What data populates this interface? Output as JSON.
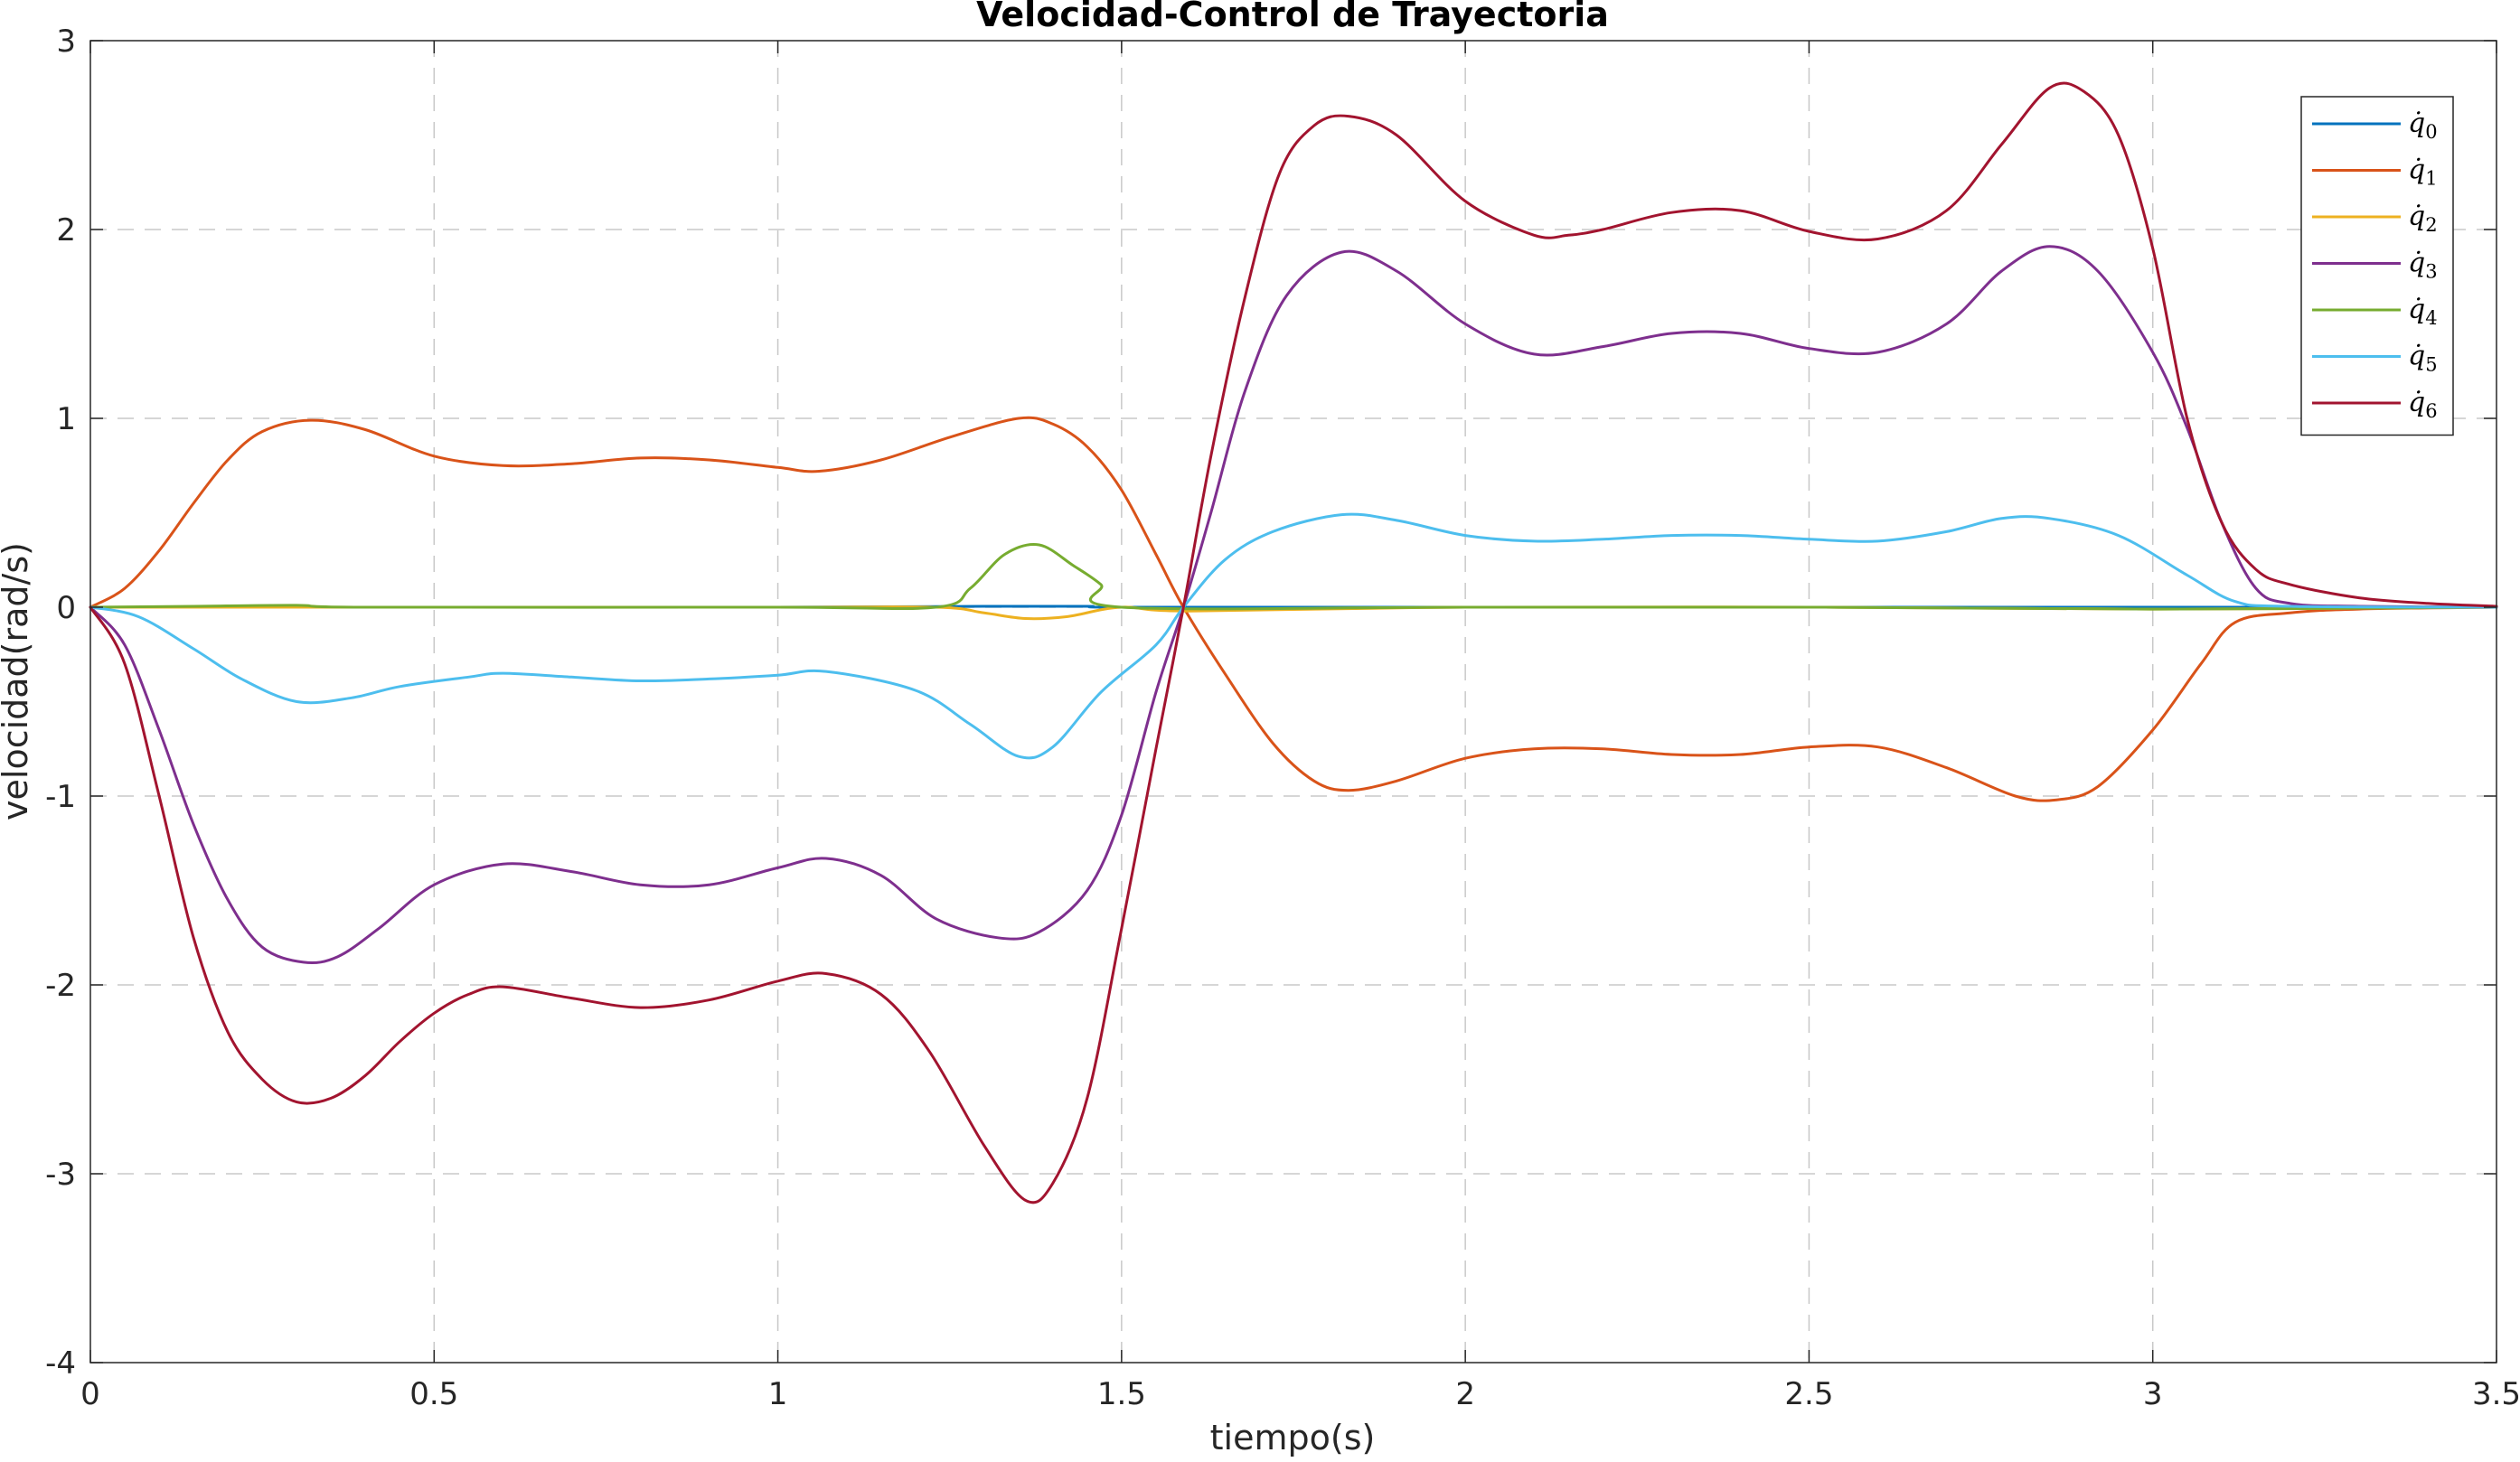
{
  "chart_data": {
    "type": "line",
    "title": "Velocidad-Control de Trayectoria",
    "xlabel": "tiempo(s)",
    "ylabel": "velocidad(rad/s)",
    "xlim": [
      0,
      3.5
    ],
    "ylim": [
      -4,
      3
    ],
    "xticks": [
      0,
      0.5,
      1,
      1.5,
      2,
      2.5,
      3,
      3.5
    ],
    "xtick_labels": [
      "0",
      "0.5",
      "1",
      "1.5",
      "2",
      "2.5",
      "3",
      "3.5"
    ],
    "yticks": [
      -4,
      -3,
      -2,
      -1,
      0,
      1,
      2,
      3
    ],
    "ytick_labels": [
      "-4",
      "-3",
      "-2",
      "-1",
      "0",
      "1",
      "2",
      "3"
    ],
    "grid": true,
    "legend_position": "top-right",
    "series": [
      {
        "name": "q̇0",
        "base": "q̇",
        "sub": "0",
        "color": "#0072BD",
        "points": [
          [
            0,
            0
          ],
          [
            0.5,
            0
          ],
          [
            1.0,
            0
          ],
          [
            1.3,
            0.005
          ],
          [
            1.45,
            0.005
          ],
          [
            1.5,
            0
          ],
          [
            2.0,
            0
          ],
          [
            2.5,
            0
          ],
          [
            3.0,
            0
          ],
          [
            3.5,
            0
          ]
        ]
      },
      {
        "name": "q̇1",
        "base": "q̇",
        "sub": "1",
        "color": "#D95319",
        "points": [
          [
            0,
            0
          ],
          [
            0.05,
            0.1
          ],
          [
            0.1,
            0.3
          ],
          [
            0.15,
            0.55
          ],
          [
            0.2,
            0.78
          ],
          [
            0.25,
            0.93
          ],
          [
            0.32,
            0.99
          ],
          [
            0.4,
            0.94
          ],
          [
            0.5,
            0.8
          ],
          [
            0.6,
            0.75
          ],
          [
            0.7,
            0.76
          ],
          [
            0.8,
            0.79
          ],
          [
            0.9,
            0.78
          ],
          [
            1.0,
            0.74
          ],
          [
            1.06,
            0.72
          ],
          [
            1.15,
            0.78
          ],
          [
            1.25,
            0.9
          ],
          [
            1.35,
            1.0
          ],
          [
            1.4,
            0.97
          ],
          [
            1.45,
            0.85
          ],
          [
            1.5,
            0.62
          ],
          [
            1.55,
            0.28
          ],
          [
            1.59,
            0.0
          ],
          [
            1.65,
            -0.35
          ],
          [
            1.72,
            -0.72
          ],
          [
            1.78,
            -0.92
          ],
          [
            1.83,
            -0.97
          ],
          [
            1.9,
            -0.92
          ],
          [
            2.0,
            -0.8
          ],
          [
            2.1,
            -0.75
          ],
          [
            2.2,
            -0.75
          ],
          [
            2.3,
            -0.78
          ],
          [
            2.4,
            -0.78
          ],
          [
            2.5,
            -0.74
          ],
          [
            2.6,
            -0.74
          ],
          [
            2.7,
            -0.85
          ],
          [
            2.8,
            -1.0
          ],
          [
            2.86,
            -1.02
          ],
          [
            2.92,
            -0.95
          ],
          [
            3.0,
            -0.65
          ],
          [
            3.07,
            -0.3
          ],
          [
            3.12,
            -0.08
          ],
          [
            3.2,
            -0.03
          ],
          [
            3.3,
            -0.01
          ],
          [
            3.5,
            0
          ]
        ]
      },
      {
        "name": "q̇2",
        "base": "q̇",
        "sub": "2",
        "color": "#EDB120",
        "points": [
          [
            0,
            0
          ],
          [
            0.5,
            0
          ],
          [
            1.0,
            0
          ],
          [
            1.23,
            0
          ],
          [
            1.3,
            -0.03
          ],
          [
            1.36,
            -0.06
          ],
          [
            1.42,
            -0.05
          ],
          [
            1.5,
            0
          ],
          [
            1.6,
            -0.02
          ],
          [
            2.0,
            0
          ],
          [
            2.5,
            0
          ],
          [
            3.0,
            -0.01
          ],
          [
            3.5,
            0
          ]
        ]
      },
      {
        "name": "q̇3",
        "base": "q̇",
        "sub": "3",
        "color": "#7E2F8E",
        "points": [
          [
            0,
            0
          ],
          [
            0.05,
            -0.2
          ],
          [
            0.1,
            -0.65
          ],
          [
            0.15,
            -1.15
          ],
          [
            0.2,
            -1.55
          ],
          [
            0.25,
            -1.8
          ],
          [
            0.31,
            -1.88
          ],
          [
            0.36,
            -1.85
          ],
          [
            0.42,
            -1.7
          ],
          [
            0.5,
            -1.47
          ],
          [
            0.6,
            -1.36
          ],
          [
            0.7,
            -1.4
          ],
          [
            0.8,
            -1.47
          ],
          [
            0.9,
            -1.47
          ],
          [
            1.0,
            -1.38
          ],
          [
            1.07,
            -1.33
          ],
          [
            1.15,
            -1.42
          ],
          [
            1.23,
            -1.65
          ],
          [
            1.32,
            -1.75
          ],
          [
            1.38,
            -1.72
          ],
          [
            1.45,
            -1.5
          ],
          [
            1.5,
            -1.1
          ],
          [
            1.55,
            -0.45
          ],
          [
            1.59,
            0.0
          ],
          [
            1.63,
            0.5
          ],
          [
            1.68,
            1.15
          ],
          [
            1.74,
            1.65
          ],
          [
            1.82,
            1.88
          ],
          [
            1.9,
            1.78
          ],
          [
            2.0,
            1.5
          ],
          [
            2.1,
            1.34
          ],
          [
            2.2,
            1.38
          ],
          [
            2.3,
            1.45
          ],
          [
            2.4,
            1.45
          ],
          [
            2.5,
            1.37
          ],
          [
            2.6,
            1.35
          ],
          [
            2.7,
            1.5
          ],
          [
            2.78,
            1.78
          ],
          [
            2.85,
            1.91
          ],
          [
            2.92,
            1.78
          ],
          [
            3.0,
            1.35
          ],
          [
            3.05,
            0.95
          ],
          [
            3.1,
            0.45
          ],
          [
            3.15,
            0.1
          ],
          [
            3.2,
            0.02
          ],
          [
            3.3,
            0.005
          ],
          [
            3.5,
            0
          ]
        ]
      },
      {
        "name": "q̇4",
        "base": "q̇",
        "sub": "4",
        "color": "#77AC30",
        "points": [
          [
            0,
            0
          ],
          [
            0.15,
            0.005
          ],
          [
            0.3,
            0.01
          ],
          [
            0.4,
            0
          ],
          [
            1.0,
            0
          ],
          [
            1.23,
            0
          ],
          [
            1.28,
            0.1
          ],
          [
            1.33,
            0.28
          ],
          [
            1.38,
            0.33
          ],
          [
            1.43,
            0.22
          ],
          [
            1.47,
            0.12
          ],
          [
            1.5,
            0
          ],
          [
            2.0,
            0
          ],
          [
            2.5,
            0
          ],
          [
            3.0,
            -0.01
          ],
          [
            3.5,
            0
          ]
        ]
      },
      {
        "name": "q̇5",
        "base": "q̇",
        "sub": "5",
        "color": "#4DBEEE",
        "points": [
          [
            0,
            0
          ],
          [
            0.07,
            -0.05
          ],
          [
            0.15,
            -0.22
          ],
          [
            0.22,
            -0.38
          ],
          [
            0.3,
            -0.5
          ],
          [
            0.38,
            -0.48
          ],
          [
            0.45,
            -0.42
          ],
          [
            0.55,
            -0.37
          ],
          [
            0.6,
            -0.35
          ],
          [
            0.7,
            -0.37
          ],
          [
            0.8,
            -0.39
          ],
          [
            0.9,
            -0.38
          ],
          [
            1.0,
            -0.36
          ],
          [
            1.07,
            -0.34
          ],
          [
            1.2,
            -0.44
          ],
          [
            1.28,
            -0.62
          ],
          [
            1.35,
            -0.79
          ],
          [
            1.4,
            -0.74
          ],
          [
            1.47,
            -0.45
          ],
          [
            1.55,
            -0.2
          ],
          [
            1.59,
            0.0
          ],
          [
            1.65,
            0.25
          ],
          [
            1.72,
            0.4
          ],
          [
            1.82,
            0.49
          ],
          [
            1.9,
            0.46
          ],
          [
            2.0,
            0.38
          ],
          [
            2.1,
            0.35
          ],
          [
            2.2,
            0.36
          ],
          [
            2.3,
            0.38
          ],
          [
            2.4,
            0.38
          ],
          [
            2.5,
            0.36
          ],
          [
            2.6,
            0.35
          ],
          [
            2.7,
            0.4
          ],
          [
            2.78,
            0.47
          ],
          [
            2.85,
            0.47
          ],
          [
            2.95,
            0.38
          ],
          [
            3.05,
            0.17
          ],
          [
            3.12,
            0.03
          ],
          [
            3.2,
            0.005
          ],
          [
            3.5,
            0
          ]
        ]
      },
      {
        "name": "q̇6",
        "base": "q̇",
        "sub": "6",
        "color": "#A2142F",
        "points": [
          [
            0,
            0
          ],
          [
            0.05,
            -0.3
          ],
          [
            0.1,
            -1.0
          ],
          [
            0.15,
            -1.75
          ],
          [
            0.2,
            -2.25
          ],
          [
            0.25,
            -2.5
          ],
          [
            0.3,
            -2.62
          ],
          [
            0.35,
            -2.6
          ],
          [
            0.4,
            -2.48
          ],
          [
            0.45,
            -2.3
          ],
          [
            0.5,
            -2.15
          ],
          [
            0.55,
            -2.05
          ],
          [
            0.6,
            -2.01
          ],
          [
            0.7,
            -2.07
          ],
          [
            0.8,
            -2.12
          ],
          [
            0.9,
            -2.08
          ],
          [
            1.0,
            -1.98
          ],
          [
            1.07,
            -1.94
          ],
          [
            1.15,
            -2.05
          ],
          [
            1.22,
            -2.35
          ],
          [
            1.3,
            -2.85
          ],
          [
            1.36,
            -3.14
          ],
          [
            1.4,
            -3.05
          ],
          [
            1.45,
            -2.6
          ],
          [
            1.5,
            -1.7
          ],
          [
            1.55,
            -0.75
          ],
          [
            1.59,
            0.0
          ],
          [
            1.63,
            0.8
          ],
          [
            1.68,
            1.65
          ],
          [
            1.73,
            2.3
          ],
          [
            1.78,
            2.55
          ],
          [
            1.83,
            2.6
          ],
          [
            1.9,
            2.5
          ],
          [
            2.0,
            2.15
          ],
          [
            2.1,
            1.97
          ],
          [
            2.15,
            1.97
          ],
          [
            2.2,
            2.0
          ],
          [
            2.3,
            2.09
          ],
          [
            2.4,
            2.1
          ],
          [
            2.5,
            1.99
          ],
          [
            2.6,
            1.95
          ],
          [
            2.7,
            2.1
          ],
          [
            2.78,
            2.45
          ],
          [
            2.85,
            2.75
          ],
          [
            2.9,
            2.73
          ],
          [
            2.95,
            2.5
          ],
          [
            3.0,
            1.9
          ],
          [
            3.05,
            1.0
          ],
          [
            3.1,
            0.45
          ],
          [
            3.15,
            0.2
          ],
          [
            3.2,
            0.12
          ],
          [
            3.3,
            0.05
          ],
          [
            3.4,
            0.02
          ],
          [
            3.5,
            0.005
          ]
        ]
      }
    ]
  }
}
